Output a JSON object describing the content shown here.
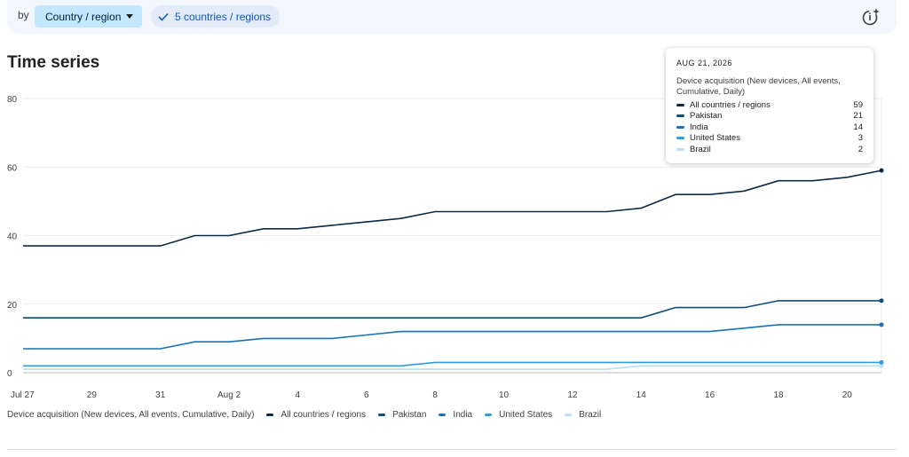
{
  "filterbar": {
    "by_label": "by",
    "dimension_label": "Country / region",
    "filter_label": "5 countries / regions",
    "insights_icon": "insights-sparkle-icon"
  },
  "card": {
    "title": "Time series"
  },
  "colors": {
    "All countries / regions": "#0d2a45",
    "Pakistan": "#0e4c7a",
    "India": "#1971b5",
    "United States": "#2f9be0",
    "Brazil": "#b9def7"
  },
  "tooltip": {
    "date": "AUG 21, 2026",
    "metric": "Device acquisition (New devices, All events, Cumulative, Daily)",
    "rows": [
      {
        "name": "All countries / regions",
        "value": "59"
      },
      {
        "name": "Pakistan",
        "value": "21"
      },
      {
        "name": "India",
        "value": "14"
      },
      {
        "name": "United States",
        "value": "3"
      },
      {
        "name": "Brazil",
        "value": "2"
      }
    ]
  },
  "legend": {
    "metric": "Device acquisition (New devices, All events, Cumulative, Daily)",
    "items": [
      "All countries / regions",
      "Pakistan",
      "India",
      "United States",
      "Brazil"
    ]
  },
  "chart_data": {
    "type": "line",
    "title": "Time series",
    "xlabel": "",
    "ylabel": "",
    "ylim": [
      0,
      80
    ],
    "yticks": [
      0,
      20,
      40,
      60,
      80
    ],
    "grid": true,
    "legend_position": "bottom",
    "x": [
      "Jul 27",
      "Jul 28",
      "Jul 29",
      "Jul 30",
      "Jul 31",
      "Aug 1",
      "Aug 2",
      "Aug 3",
      "Aug 4",
      "Aug 5",
      "Aug 6",
      "Aug 7",
      "Aug 8",
      "Aug 9",
      "Aug 10",
      "Aug 11",
      "Aug 12",
      "Aug 13",
      "Aug 14",
      "Aug 15",
      "Aug 16",
      "Aug 17",
      "Aug 18",
      "Aug 19",
      "Aug 20",
      "Aug 21"
    ],
    "xtick_labels": [
      "Jul 27",
      "29",
      "31",
      "Aug 2",
      "4",
      "6",
      "8",
      "10",
      "12",
      "14",
      "16",
      "18",
      "20"
    ],
    "series": [
      {
        "name": "All countries / regions",
        "values": [
          37,
          37,
          37,
          37,
          37,
          40,
          40,
          42,
          42,
          43,
          44,
          45,
          47,
          47,
          47,
          47,
          47,
          47,
          48,
          52,
          52,
          53,
          56,
          56,
          57,
          59
        ]
      },
      {
        "name": "Pakistan",
        "values": [
          16,
          16,
          16,
          16,
          16,
          16,
          16,
          16,
          16,
          16,
          16,
          16,
          16,
          16,
          16,
          16,
          16,
          16,
          16,
          19,
          19,
          19,
          21,
          21,
          21,
          21
        ]
      },
      {
        "name": "India",
        "values": [
          7,
          7,
          7,
          7,
          7,
          9,
          9,
          10,
          10,
          10,
          11,
          12,
          12,
          12,
          12,
          12,
          12,
          12,
          12,
          12,
          12,
          13,
          14,
          14,
          14,
          14
        ]
      },
      {
        "name": "United States",
        "values": [
          2,
          2,
          2,
          2,
          2,
          2,
          2,
          2,
          2,
          2,
          2,
          2,
          3,
          3,
          3,
          3,
          3,
          3,
          3,
          3,
          3,
          3,
          3,
          3,
          3,
          3
        ]
      },
      {
        "name": "Brazil",
        "values": [
          1,
          1,
          1,
          1,
          1,
          1,
          1,
          1,
          1,
          1,
          1,
          1,
          1,
          1,
          1,
          1,
          1,
          1,
          2,
          2,
          2,
          2,
          2,
          2,
          2,
          2
        ]
      }
    ]
  }
}
